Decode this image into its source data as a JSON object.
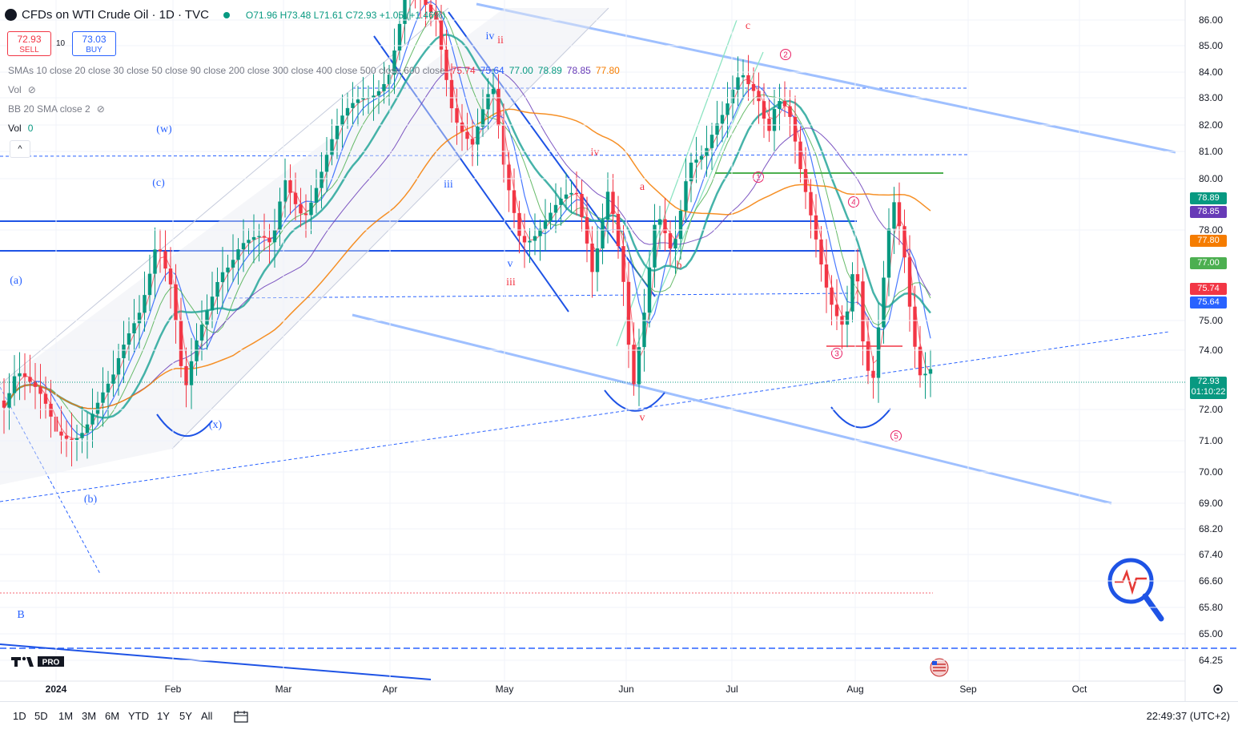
{
  "header": {
    "title": "CFDs on WTI Crude Oil · 1D · TVC",
    "ohlc": "O71.96 H73.48 L71.61 C72.93 +1.05 (+1.46%)"
  },
  "trade": {
    "sell_price": "72.93",
    "sell_label": "SELL",
    "buy_price": "73.03",
    "buy_label": "BUY",
    "spread": "10"
  },
  "legends": {
    "sma_label": "SMAs 10 close 20 close 30 close 50 close 90 close 200 close 300 close 400 close 500 close 600 close",
    "sma_values": [
      {
        "text": "75.74",
        "color": "#f23645"
      },
      {
        "text": "75.64",
        "color": "#2962ff"
      },
      {
        "text": "77.00",
        "color": "#089981"
      },
      {
        "text": "78.89",
        "color": "#089981"
      },
      {
        "text": "78.85",
        "color": "#673ab7"
      },
      {
        "text": "77.80",
        "color": "#f57c00"
      }
    ],
    "vol_hidden": "Vol",
    "bb": "BB 20 SMA close 2",
    "vol": "Vol",
    "vol_value": "0",
    "collapse_icon": "chevron-up-icon"
  },
  "chart_data": {
    "type": "candlestick",
    "y_ticks": [
      "86.00",
      "85.00",
      "84.00",
      "83.00",
      "82.00",
      "81.00",
      "80.00",
      "78.00",
      "75.00",
      "74.00",
      "72.00",
      "71.00",
      "70.00",
      "69.00",
      "68.20",
      "67.40",
      "66.60",
      "65.80",
      "65.00",
      "64.25"
    ],
    "x_ticks": [
      {
        "label": "2024",
        "bold": true
      },
      {
        "label": "Feb"
      },
      {
        "label": "Mar"
      },
      {
        "label": "Apr"
      },
      {
        "label": "May"
      },
      {
        "label": "Jun"
      },
      {
        "label": "Jul"
      },
      {
        "label": "Aug"
      },
      {
        "label": "Sep"
      },
      {
        "label": "Oct"
      }
    ],
    "last_price": {
      "value": "72.93",
      "countdown": "01:10:22",
      "color": "#089981"
    },
    "sma_badges": [
      {
        "text": "78.89",
        "color": "#089981"
      },
      {
        "text": "78.85",
        "color": "#673ab7"
      },
      {
        "text": "77.80",
        "color": "#f57c00"
      },
      {
        "text": "77.00",
        "color": "#4caf50"
      },
      {
        "text": "75.74",
        "color": "#f23645"
      },
      {
        "text": "75.64",
        "color": "#2962ff"
      }
    ],
    "annotations": [
      {
        "text": "(w)",
        "color": "#2962ff"
      },
      {
        "text": "(c)",
        "color": "#2962ff"
      },
      {
        "text": "(a)",
        "color": "#2962ff"
      },
      {
        "text": "(x)",
        "color": "#2962ff"
      },
      {
        "text": "(b)",
        "color": "#2962ff"
      },
      {
        "text": "B",
        "color": "#2962ff"
      },
      {
        "text": "iv",
        "color": "#2962ff"
      },
      {
        "text": "ii",
        "color": "#f23645"
      },
      {
        "text": "iii",
        "color": "#2962ff"
      },
      {
        "text": "iv",
        "color": "#f23645"
      },
      {
        "text": "a",
        "color": "#f23645"
      },
      {
        "text": "v",
        "color": "#2962ff"
      },
      {
        "text": "iii",
        "color": "#f23645"
      },
      {
        "text": "b",
        "color": "#f23645"
      },
      {
        "text": "v",
        "color": "#f23645"
      },
      {
        "text": "c",
        "color": "#f23645"
      },
      {
        "text": "2",
        "color": "#e91e63"
      },
      {
        "text": "1",
        "color": "#e91e63"
      },
      {
        "text": "4",
        "color": "#e91e63"
      },
      {
        "text": "3",
        "color": "#e91e63"
      },
      {
        "text": "5",
        "color": "#e91e63"
      }
    ]
  },
  "toolbar": {
    "ranges": [
      "1D",
      "5D",
      "1M",
      "3M",
      "6M",
      "YTD",
      "1Y",
      "5Y",
      "All"
    ],
    "calendar_icon": "calendar-icon",
    "clock": "22:49:37 (UTC+2)"
  },
  "logo": {
    "text": "TV PRO"
  },
  "watermark_icon": "magnifier-heartbeat-icon"
}
